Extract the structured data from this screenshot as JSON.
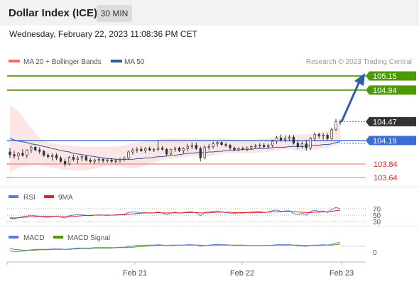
{
  "header": {
    "title": "Dollar Index (ICE)",
    "timeframe": "30 MIN"
  },
  "timestamp": "Wednesday, February 22, 2023 11:08:36 PM CET",
  "legend": {
    "bb": "MA 20 + Bollinger Bands",
    "ma50": "MA 50"
  },
  "credit": "Research © 2023 Trading Central",
  "colors": {
    "green": "#4e9a06",
    "blue": "#3a6ed6",
    "red": "#e02020",
    "dark": "#333333",
    "ma50": "#2f5a9e",
    "bb": "#f26d6d",
    "rsi": "#5b7fd8",
    "ma9": "#e02020",
    "macd": "#5b7fd8",
    "signal": "#4e9a06"
  },
  "chart_data": [
    {
      "type": "candlestick",
      "x_ticks": [
        "Feb 21",
        "Feb 22",
        "Feb 23"
      ],
      "levels": [
        {
          "value": 105.15,
          "label": "105.15",
          "kind": "resistance"
        },
        {
          "value": 104.94,
          "label": "104.94",
          "kind": "resistance"
        },
        {
          "value": 104.47,
          "label": "104.47",
          "kind": "last"
        },
        {
          "value": 104.19,
          "label": "104.19",
          "kind": "pivot"
        },
        {
          "value": 103.84,
          "label": "103.84",
          "kind": "support"
        },
        {
          "value": 103.64,
          "label": "103.64",
          "kind": "support"
        }
      ],
      "arrow": {
        "from": 104.47,
        "to": 105.15
      },
      "ohlc": [
        [
          104.02,
          104.08,
          103.93,
          103.98
        ],
        [
          103.98,
          104.04,
          103.92,
          103.96
        ],
        [
          103.96,
          104.02,
          103.9,
          104.0
        ],
        [
          104.0,
          104.06,
          103.95,
          103.97
        ],
        [
          103.97,
          104.06,
          103.93,
          104.05
        ],
        [
          104.05,
          104.12,
          104.0,
          104.09
        ],
        [
          104.09,
          104.11,
          104.03,
          104.05
        ],
        [
          104.05,
          104.09,
          103.99,
          104.03
        ],
        [
          104.03,
          104.05,
          103.95,
          103.97
        ],
        [
          103.97,
          104.0,
          103.92,
          103.95
        ],
        [
          103.95,
          104.0,
          103.89,
          103.97
        ],
        [
          103.97,
          104.0,
          103.9,
          103.93
        ],
        [
          103.93,
          103.96,
          103.86,
          103.88
        ],
        [
          103.88,
          103.92,
          103.8,
          103.84
        ],
        [
          103.84,
          103.96,
          103.82,
          103.94
        ],
        [
          103.94,
          103.98,
          103.88,
          103.91
        ],
        [
          103.91,
          103.96,
          103.85,
          103.93
        ],
        [
          103.93,
          103.97,
          103.88,
          103.95
        ],
        [
          103.95,
          103.98,
          103.88,
          103.9
        ],
        [
          103.9,
          103.93,
          103.85,
          103.88
        ],
        [
          103.88,
          103.92,
          103.84,
          103.9
        ],
        [
          103.9,
          103.94,
          103.86,
          103.91
        ],
        [
          103.91,
          103.93,
          103.86,
          103.89
        ],
        [
          103.89,
          103.92,
          103.86,
          103.9
        ],
        [
          103.9,
          103.93,
          103.86,
          103.88
        ],
        [
          103.88,
          103.92,
          103.85,
          103.89
        ],
        [
          103.89,
          103.93,
          103.86,
          103.91
        ],
        [
          103.91,
          103.95,
          103.88,
          103.93
        ],
        [
          103.93,
          104.04,
          103.9,
          104.02
        ],
        [
          104.02,
          104.08,
          103.98,
          104.05
        ],
        [
          104.05,
          104.09,
          104.01,
          104.06
        ],
        [
          104.06,
          104.1,
          104.02,
          104.04
        ],
        [
          104.04,
          104.09,
          104.0,
          104.07
        ],
        [
          104.07,
          104.1,
          104.03,
          104.05
        ],
        [
          104.05,
          104.08,
          104.02,
          104.06
        ],
        [
          104.06,
          104.19,
          104.03,
          104.08
        ],
        [
          104.08,
          104.11,
          104.04,
          104.06
        ],
        [
          104.06,
          104.08,
          103.96,
          103.99
        ],
        [
          103.99,
          104.07,
          103.97,
          104.06
        ],
        [
          104.06,
          104.1,
          104.02,
          104.08
        ],
        [
          104.08,
          104.1,
          104.02,
          104.04
        ],
        [
          104.04,
          104.09,
          104.0,
          104.07
        ],
        [
          104.07,
          104.14,
          104.03,
          104.1
        ],
        [
          104.1,
          104.16,
          104.06,
          104.12
        ],
        [
          104.12,
          104.16,
          104.05,
          104.07
        ],
        [
          104.07,
          104.1,
          103.88,
          103.93
        ],
        [
          103.93,
          104.12,
          103.91,
          104.09
        ],
        [
          104.09,
          104.14,
          104.05,
          104.1
        ],
        [
          104.1,
          104.17,
          104.07,
          104.14
        ],
        [
          104.14,
          104.18,
          104.1,
          104.16
        ],
        [
          104.16,
          104.18,
          104.11,
          104.13
        ],
        [
          104.13,
          104.16,
          104.09,
          104.12
        ],
        [
          104.12,
          104.14,
          104.05,
          104.08
        ],
        [
          104.08,
          104.1,
          104.03,
          104.05
        ],
        [
          104.05,
          104.09,
          104.03,
          104.07
        ],
        [
          104.07,
          104.1,
          104.04,
          104.06
        ],
        [
          104.06,
          104.1,
          104.03,
          104.08
        ],
        [
          104.08,
          104.12,
          104.05,
          104.1
        ],
        [
          104.1,
          104.14,
          104.07,
          104.11
        ],
        [
          104.11,
          104.15,
          104.08,
          104.12
        ],
        [
          104.12,
          104.15,
          104.08,
          104.1
        ],
        [
          104.1,
          104.14,
          104.06,
          104.12
        ],
        [
          104.12,
          104.2,
          104.09,
          104.18
        ],
        [
          104.18,
          104.26,
          104.14,
          104.23
        ],
        [
          104.23,
          104.28,
          104.17,
          104.2
        ],
        [
          104.2,
          104.26,
          104.16,
          104.22
        ],
        [
          104.22,
          104.27,
          104.18,
          104.24
        ],
        [
          104.24,
          104.27,
          104.13,
          104.15
        ],
        [
          104.15,
          104.19,
          104.06,
          104.1
        ],
        [
          104.1,
          104.17,
          104.07,
          104.14
        ],
        [
          104.14,
          104.2,
          104.04,
          104.08
        ],
        [
          104.08,
          104.24,
          104.05,
          104.22
        ],
        [
          104.22,
          104.31,
          104.18,
          104.28
        ],
        [
          104.28,
          104.31,
          104.22,
          104.26
        ],
        [
          104.26,
          104.3,
          104.2,
          104.27
        ],
        [
          104.27,
          104.3,
          104.19,
          104.22
        ],
        [
          104.22,
          104.38,
          104.2,
          104.35
        ],
        [
          104.35,
          104.51,
          104.33,
          104.47
        ],
        [
          104.47,
          104.5,
          104.42,
          104.47
        ]
      ],
      "bb_upper": [
        104.7,
        104.68,
        104.62,
        104.55,
        104.46,
        104.38,
        104.3,
        104.23,
        104.18,
        104.16,
        104.15,
        104.14,
        104.13,
        104.12,
        104.12,
        104.11,
        104.1,
        104.1,
        104.1,
        104.1,
        104.1,
        104.1,
        104.1,
        104.1,
        104.1,
        104.1,
        104.11,
        104.12,
        104.14,
        104.15,
        104.16,
        104.17,
        104.18,
        104.19,
        104.2,
        104.21,
        104.22,
        104.22,
        104.22,
        104.22,
        104.22,
        104.22,
        104.22,
        104.22,
        104.22,
        104.21,
        104.21,
        104.21,
        104.22,
        104.22,
        104.22,
        104.22,
        104.22,
        104.21,
        104.21,
        104.2,
        104.2,
        104.2,
        104.2,
        104.21,
        104.21,
        104.22,
        104.24,
        104.26,
        104.27,
        104.28,
        104.28,
        104.28,
        104.28,
        104.28,
        104.28,
        104.29,
        104.3,
        104.31,
        104.32,
        104.33,
        104.36,
        104.42,
        104.45
      ],
      "bb_lower": [
        103.7,
        103.75,
        103.78,
        103.8,
        103.81,
        103.82,
        103.82,
        103.82,
        103.81,
        103.8,
        103.79,
        103.78,
        103.76,
        103.75,
        103.75,
        103.74,
        103.74,
        103.74,
        103.75,
        103.76,
        103.77,
        103.78,
        103.8,
        103.81,
        103.81,
        103.81,
        103.8,
        103.79,
        103.78,
        103.78,
        103.79,
        103.8,
        103.82,
        103.84,
        103.86,
        103.88,
        103.9,
        103.91,
        103.92,
        103.92,
        103.93,
        103.94,
        103.95,
        103.96,
        103.96,
        103.95,
        103.95,
        103.96,
        103.97,
        103.98,
        103.99,
        104.0,
        104.0,
        104.0,
        104.0,
        104.0,
        104.0,
        104.0,
        104.01,
        104.01,
        104.02,
        104.02,
        104.03,
        104.04,
        104.05,
        104.06,
        104.06,
        104.05,
        104.04,
        104.04,
        104.04,
        104.05,
        104.05,
        104.06,
        104.07,
        104.08,
        104.1,
        104.12,
        104.15
      ],
      "ma50": [
        104.22,
        104.2,
        104.18,
        104.17,
        104.16,
        104.14,
        104.13,
        104.12,
        104.1,
        104.09,
        104.07,
        104.06,
        104.04,
        104.03,
        104.02,
        104.0,
        103.99,
        103.98,
        103.97,
        103.96,
        103.95,
        103.94,
        103.93,
        103.92,
        103.92,
        103.91,
        103.91,
        103.91,
        103.91,
        103.91,
        103.92,
        103.92,
        103.93,
        103.93,
        103.94,
        103.95,
        103.95,
        103.96,
        103.97,
        103.97,
        103.98,
        103.99,
        104.0,
        104.0,
        104.01,
        104.01,
        104.01,
        104.02,
        104.02,
        104.03,
        104.03,
        104.04,
        104.04,
        104.05,
        104.05,
        104.06,
        104.06,
        104.06,
        104.07,
        104.07,
        104.07,
        104.08,
        104.08,
        104.09,
        104.09,
        104.09,
        104.1,
        104.1,
        104.1,
        104.1,
        104.11,
        104.11,
        104.12,
        104.12,
        104.13,
        104.13,
        104.14,
        104.16,
        104.17
      ]
    },
    {
      "type": "line",
      "title": "RSI",
      "series": [
        {
          "name": "RSI"
        },
        {
          "name": "9MA"
        }
      ],
      "y_ticks": [
        "70",
        "50",
        "30"
      ],
      "rsi": [
        40,
        38,
        42,
        45,
        47,
        50,
        48,
        46,
        44,
        43,
        45,
        47,
        44,
        41,
        48,
        50,
        52,
        51,
        49,
        48,
        50,
        51,
        50,
        49,
        50,
        51,
        52,
        53,
        58,
        60,
        59,
        57,
        58,
        56,
        57,
        60,
        56,
        52,
        57,
        59,
        56,
        58,
        60,
        61,
        57,
        48,
        59,
        60,
        62,
        63,
        60,
        58,
        56,
        55,
        57,
        56,
        58,
        60,
        61,
        62,
        58,
        60,
        64,
        66,
        62,
        63,
        64,
        55,
        52,
        56,
        50,
        62,
        65,
        62,
        63,
        58,
        68,
        74,
        70
      ],
      "ma9": [
        42,
        41,
        42,
        43,
        44,
        45,
        45,
        46,
        46,
        46,
        46,
        46,
        45,
        45,
        45,
        46,
        47,
        48,
        49,
        49,
        50,
        50,
        50,
        50,
        50,
        50,
        51,
        51,
        52,
        54,
        55,
        56,
        57,
        57,
        57,
        58,
        57,
        57,
        57,
        57,
        57,
        57,
        58,
        58,
        58,
        57,
        57,
        57,
        58,
        59,
        59,
        59,
        59,
        58,
        58,
        58,
        58,
        57,
        58,
        58,
        58,
        59,
        60,
        61,
        61,
        62,
        62,
        61,
        60,
        59,
        58,
        58,
        59,
        59,
        60,
        60,
        62,
        64,
        65
      ]
    },
    {
      "type": "line",
      "title": "MACD",
      "series": [
        {
          "name": "MACD"
        },
        {
          "name": "MACD Signal"
        }
      ],
      "y_ticks": [
        "0"
      ],
      "macd": [
        -0.1,
        -0.13,
        -0.12,
        -0.11,
        -0.1,
        -0.08,
        -0.07,
        -0.07,
        -0.07,
        -0.07,
        -0.06,
        -0.06,
        -0.06,
        -0.07,
        -0.06,
        -0.05,
        -0.04,
        -0.04,
        -0.04,
        -0.04,
        -0.03,
        -0.03,
        -0.03,
        -0.03,
        -0.03,
        -0.03,
        -0.02,
        -0.02,
        0.0,
        0.01,
        0.02,
        0.02,
        0.03,
        0.03,
        0.03,
        0.04,
        0.03,
        0.02,
        0.03,
        0.03,
        0.03,
        0.03,
        0.04,
        0.04,
        0.03,
        0.0,
        0.02,
        0.03,
        0.04,
        0.05,
        0.04,
        0.04,
        0.03,
        0.02,
        0.02,
        0.02,
        0.02,
        0.02,
        0.02,
        0.02,
        0.02,
        0.02,
        0.03,
        0.04,
        0.04,
        0.04,
        0.04,
        0.03,
        0.01,
        0.01,
        0.0,
        0.02,
        0.03,
        0.03,
        0.04,
        0.03,
        0.05,
        0.08,
        0.09
      ],
      "signal": [
        -0.05,
        -0.07,
        -0.08,
        -0.09,
        -0.09,
        -0.09,
        -0.09,
        -0.08,
        -0.08,
        -0.08,
        -0.07,
        -0.07,
        -0.07,
        -0.07,
        -0.07,
        -0.06,
        -0.06,
        -0.05,
        -0.05,
        -0.05,
        -0.04,
        -0.04,
        -0.04,
        -0.04,
        -0.04,
        -0.03,
        -0.03,
        -0.03,
        -0.02,
        -0.02,
        -0.01,
        0.0,
        0.0,
        0.01,
        0.02,
        0.02,
        0.02,
        0.02,
        0.02,
        0.02,
        0.03,
        0.03,
        0.03,
        0.03,
        0.03,
        0.03,
        0.02,
        0.02,
        0.03,
        0.03,
        0.03,
        0.03,
        0.03,
        0.03,
        0.03,
        0.03,
        0.02,
        0.02,
        0.02,
        0.02,
        0.02,
        0.02,
        0.02,
        0.03,
        0.03,
        0.03,
        0.03,
        0.03,
        0.03,
        0.02,
        0.02,
        0.02,
        0.02,
        0.02,
        0.03,
        0.03,
        0.03,
        0.04,
        0.05
      ]
    }
  ]
}
